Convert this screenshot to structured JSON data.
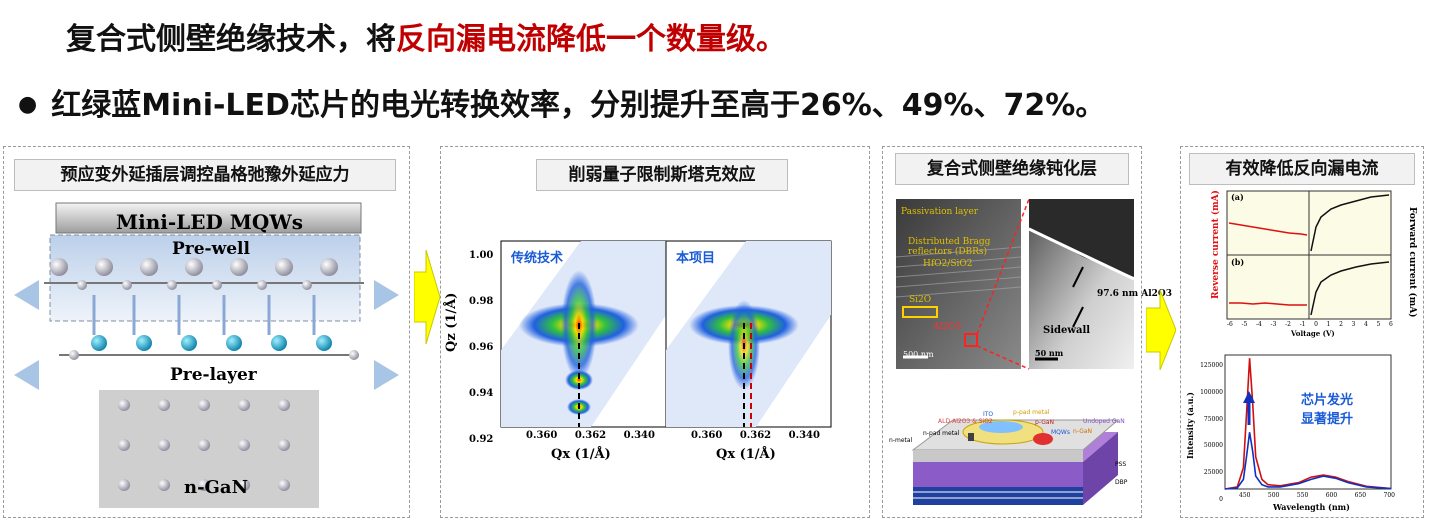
{
  "headline1": {
    "prefix": "复合式侧壁绝缘技术，将",
    "highlight": "反向漏电流降低一个数量级。"
  },
  "headline2": {
    "bullet": "●",
    "text": "红绿蓝Mini-LED芯片的电光转换效率，分别提升至高于26%、49%、72%。"
  },
  "colors": {
    "highlight": "#c00000",
    "arrow": "#ffff00",
    "blue_text": "#1a5bd6"
  },
  "panel1": {
    "title": "预应变外延插层调控晶格弛豫外延应力",
    "banner": "Mini-LED MQWs",
    "labels": {
      "prewell": "Pre-well",
      "prelayer": "Pre-layer",
      "ngan": "n-GaN"
    }
  },
  "panel2": {
    "title": "削弱量子限制斯塔克效应",
    "left_label": "传统技术",
    "right_label": "本项目",
    "y_axis_label": "Qz (1/Å)",
    "x_axis_label": "Qx (1/Å)",
    "y_ticks": [
      "1.00",
      "0.98",
      "0.96",
      "0.94",
      "0.92"
    ],
    "x_ticks_left": [
      "0.360",
      "0.362",
      "0.340"
    ],
    "x_ticks_right": [
      "0.360",
      "0.362",
      "0.340"
    ]
  },
  "panel3": {
    "title": "复合式侧壁绝缘钝化层",
    "tem_labels": {
      "passivation": "Passivation layer",
      "dbr1": "Distributed Bragg",
      "dbr2": "reflectors (DBRs)",
      "stack": "HfO2/SiO2",
      "sio": "Si2O",
      "al2o3": "Al2O3",
      "scale1": "500 nm",
      "thickness": "97.6 nm Al2O3",
      "sidewall": "Sidewall",
      "scale2": "50 nm"
    },
    "device_labels": {
      "ald": "ALD-Al2O3 & SiO2",
      "ito": "ITO",
      "ppad": "p-pad metal",
      "npad": "n-pad metal",
      "pgan": "p-GaN",
      "mqws": "MQWs",
      "ngan": "n-GaN",
      "undoped": "Undoped GaN",
      "nmetal": "n-metal",
      "pss": "PSS",
      "dbp": "DBP"
    }
  },
  "panel4": {
    "title": "有效降低反向漏电流",
    "iv": {
      "a": "(a)",
      "b": "(b)",
      "ylabel_left": "Reverse current (mA)",
      "ylabel_right": "Forward current (mA)",
      "xlabel": "Voltage (V)",
      "x_ticks": [
        "-6",
        "-5",
        "-4",
        "-3",
        "-2",
        "-1",
        "0",
        "1",
        "2",
        "3",
        "4",
        "5",
        "6"
      ]
    },
    "spectrum": {
      "ylabel": "Intensity (a.u.)",
      "xlabel": "Wavelength (nm)",
      "y_ticks": [
        "125000",
        "100000",
        "75000",
        "50000",
        "25000",
        "0"
      ],
      "x_ticks": [
        "450",
        "500",
        "550",
        "600",
        "650",
        "700"
      ],
      "annotation_line1": "芯片发光",
      "annotation_line2": "显著提升"
    }
  },
  "chart_data": [
    {
      "type": "line",
      "title": "",
      "xlabel": "Wavelength (nm)",
      "ylabel": "Intensity (a.u.)",
      "xlim": [
        430,
        700
      ],
      "ylim": [
        0,
        125000
      ],
      "series": [
        {
          "color": "#d01010",
          "x": [
            430,
            450,
            460,
            465,
            470,
            475,
            480,
            490,
            500,
            520,
            550,
            570,
            590,
            610,
            630,
            660,
            700
          ],
          "values": [
            0,
            2000,
            20000,
            70000,
            122000,
            80000,
            30000,
            9000,
            4000,
            3000,
            6000,
            11000,
            13000,
            11000,
            7000,
            2500,
            500
          ]
        },
        {
          "color": "#1030c0",
          "x": [
            430,
            450,
            460,
            465,
            470,
            475,
            480,
            490,
            500,
            520,
            550,
            570,
            590,
            610,
            630,
            660,
            700
          ],
          "values": [
            0,
            1000,
            9000,
            30000,
            53000,
            35000,
            12000,
            4000,
            2000,
            2000,
            5000,
            9000,
            12000,
            10000,
            6000,
            2000,
            400
          ]
        }
      ]
    }
  ]
}
